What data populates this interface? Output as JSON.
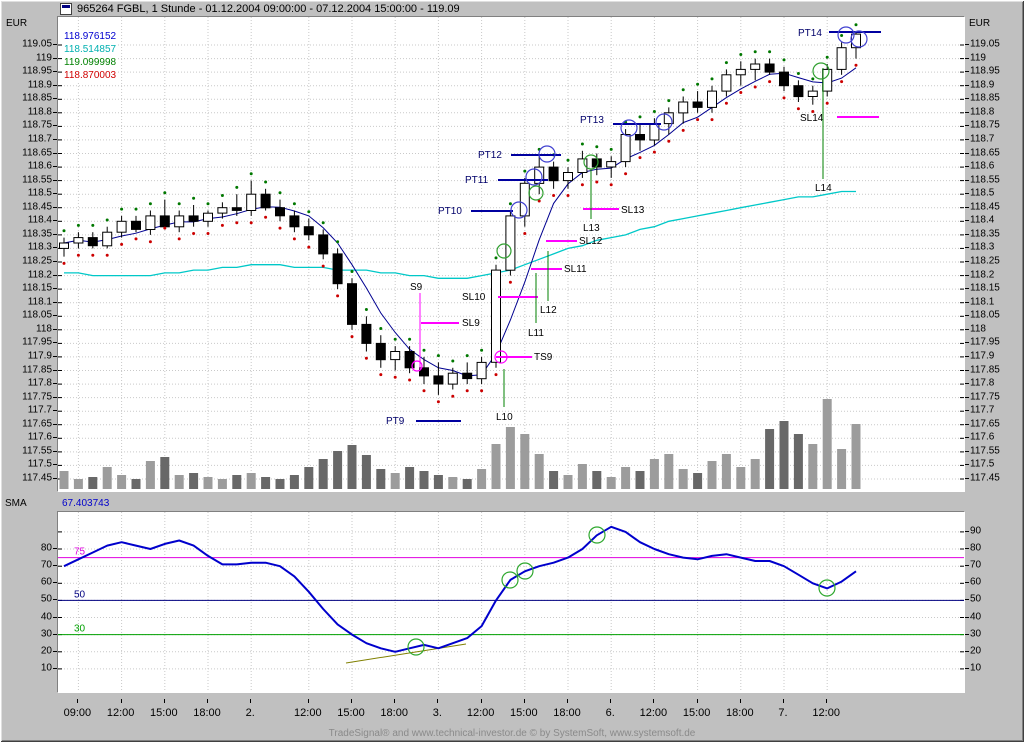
{
  "window": {
    "title": "965264  FGBL, 1 Stunde - 01.12.2004 09:00:00 - 07.12.2004 15:00:00 - 119.09",
    "footer": "TradeSignal® and www.technical-investor.de © by  SystemSoft, www.systemsoft.de"
  },
  "price_panel": {
    "axis_title_left": "EUR",
    "axis_title_right": "EUR",
    "legend": [
      {
        "value": "118.976152",
        "color": "#0000d0"
      },
      {
        "value": "118.514857",
        "color": "#00b0b0"
      },
      {
        "value": "119.099998",
        "color": "#008000"
      },
      {
        "value": "118.870003",
        "color": "#d00000"
      }
    ],
    "y_ticks": [
      119.05,
      119,
      118.95,
      118.9,
      118.85,
      118.8,
      118.75,
      118.7,
      118.65,
      118.6,
      118.55,
      118.5,
      118.45,
      118.4,
      118.35,
      118.3,
      118.25,
      118.2,
      118.15,
      118.1,
      118.05,
      118,
      117.95,
      117.9,
      117.85,
      117.8,
      117.75,
      117.7,
      117.65,
      117.6,
      117.55,
      117.5,
      117.45
    ]
  },
  "sma_panel": {
    "axis_title": "SMA",
    "legend_value": "67.403743",
    "left_ticks": [
      80,
      70,
      60,
      50,
      40,
      30,
      20,
      10
    ],
    "right_ticks": [
      90,
      80,
      70,
      60,
      50,
      40,
      30,
      20,
      10
    ],
    "levels": [
      {
        "label": "75",
        "value": 75,
        "color": "#e000e0"
      },
      {
        "label": "50",
        "value": 50,
        "color": "#000080"
      },
      {
        "label": "30",
        "value": 30,
        "color": "#00a000"
      }
    ]
  },
  "time_axis": {
    "ticks": [
      {
        "i": 1,
        "label": "09:00"
      },
      {
        "i": 4,
        "label": "12:00"
      },
      {
        "i": 7,
        "label": "15:00"
      },
      {
        "i": 10,
        "label": "18:00"
      },
      {
        "i": 13,
        "label": "2."
      },
      {
        "i": 17,
        "label": "12:00"
      },
      {
        "i": 20,
        "label": "15:00"
      },
      {
        "i": 23,
        "label": "18:00"
      },
      {
        "i": 26,
        "label": "3."
      },
      {
        "i": 29,
        "label": "12:00"
      },
      {
        "i": 32,
        "label": "15:00"
      },
      {
        "i": 35,
        "label": "18:00"
      },
      {
        "i": 38,
        "label": "6."
      },
      {
        "i": 41,
        "label": "12:00"
      },
      {
        "i": 44,
        "label": "15:00"
      },
      {
        "i": 47,
        "label": "18:00"
      },
      {
        "i": 50,
        "label": "7."
      },
      {
        "i": 53,
        "label": "12:00"
      }
    ]
  },
  "chart_data": {
    "type": "candlestick",
    "symbol": "FGBL",
    "timeframe": "1 Stunde",
    "period": "01.12.2004 09:00:00 - 07.12.2004 15:00:00",
    "last_price": 119.09,
    "price_axis_range": [
      117.45,
      119.05
    ],
    "candles_format": [
      "time",
      "open",
      "high",
      "low",
      "close",
      "volume"
    ],
    "candles": [
      [
        "01.12 08:00",
        118.3,
        118.34,
        118.27,
        118.32,
        18
      ],
      [
        "01.12 09:00",
        118.32,
        118.36,
        118.3,
        118.34,
        10
      ],
      [
        "01.12 10:00",
        118.34,
        118.36,
        118.3,
        118.31,
        12
      ],
      [
        "01.12 11:00",
        118.31,
        118.38,
        118.3,
        118.36,
        22
      ],
      [
        "01.12 12:00",
        118.36,
        118.42,
        118.34,
        118.4,
        14
      ],
      [
        "01.12 13:00",
        118.4,
        118.42,
        118.36,
        118.37,
        10
      ],
      [
        "01.12 14:00",
        118.37,
        118.44,
        118.35,
        118.42,
        28
      ],
      [
        "01.12 15:00",
        118.42,
        118.48,
        118.4,
        118.38,
        32
      ],
      [
        "01.12 16:00",
        118.38,
        118.44,
        118.36,
        118.42,
        14
      ],
      [
        "01.12 17:00",
        118.42,
        118.46,
        118.38,
        118.4,
        16
      ],
      [
        "01.12 18:00",
        118.4,
        118.44,
        118.38,
        118.43,
        12
      ],
      [
        "01.12 19:00",
        118.43,
        118.47,
        118.41,
        118.45,
        10
      ],
      [
        "01.12 20:00",
        118.45,
        118.5,
        118.42,
        118.44,
        14
      ],
      [
        "02.12 08:00",
        118.44,
        118.55,
        118.42,
        118.5,
        16
      ],
      [
        "02.12 09:00",
        118.5,
        118.52,
        118.44,
        118.45,
        12
      ],
      [
        "02.12 10:00",
        118.45,
        118.48,
        118.4,
        118.42,
        10
      ],
      [
        "02.12 11:00",
        118.42,
        118.44,
        118.36,
        118.38,
        14
      ],
      [
        "02.12 12:00",
        118.38,
        118.41,
        118.33,
        118.35,
        22
      ],
      [
        "02.12 13:00",
        118.35,
        118.37,
        118.26,
        118.28,
        30
      ],
      [
        "02.12 14:00",
        118.28,
        118.3,
        118.15,
        118.17,
        38
      ],
      [
        "02.12 15:00",
        118.17,
        118.19,
        118.0,
        118.02,
        44
      ],
      [
        "02.12 16:00",
        118.02,
        118.05,
        117.92,
        117.95,
        34
      ],
      [
        "02.12 17:00",
        117.95,
        117.98,
        117.86,
        117.89,
        20
      ],
      [
        "02.12 18:00",
        117.89,
        117.94,
        117.85,
        117.92,
        16
      ],
      [
        "02.12 19:00",
        117.92,
        117.94,
        117.84,
        117.86,
        22
      ],
      [
        "02.12 20:00",
        117.86,
        117.9,
        117.8,
        117.83,
        18
      ],
      [
        "03.12 09:00",
        117.83,
        117.88,
        117.76,
        117.8,
        14
      ],
      [
        "03.12 10:00",
        117.8,
        117.86,
        117.78,
        117.84,
        12
      ],
      [
        "03.12 11:00",
        117.84,
        117.88,
        117.8,
        117.82,
        10
      ],
      [
        "03.12 12:00",
        117.82,
        117.9,
        117.8,
        117.88,
        20
      ],
      [
        "03.12 13:00",
        117.88,
        118.24,
        117.86,
        118.22,
        45
      ],
      [
        "03.12 14:00",
        118.22,
        118.44,
        118.2,
        118.42,
        62
      ],
      [
        "03.12 15:00",
        118.42,
        118.56,
        118.38,
        118.54,
        55
      ],
      [
        "03.12 16:00",
        118.54,
        118.64,
        118.5,
        118.6,
        35
      ],
      [
        "03.12 17:00",
        118.6,
        118.62,
        118.52,
        118.55,
        18
      ],
      [
        "03.12 18:00",
        118.55,
        118.6,
        118.52,
        118.58,
        14
      ],
      [
        "03.12 19:00",
        118.58,
        118.66,
        118.56,
        118.63,
        25
      ],
      [
        "03.12 20:00",
        118.63,
        118.65,
        118.57,
        118.6,
        18
      ],
      [
        "06.12 09:00",
        118.6,
        118.64,
        118.56,
        118.62,
        12
      ],
      [
        "06.12 10:00",
        118.62,
        118.74,
        118.6,
        118.72,
        22
      ],
      [
        "06.12 11:00",
        118.72,
        118.76,
        118.66,
        118.7,
        18
      ],
      [
        "06.12 12:00",
        118.7,
        118.78,
        118.68,
        118.76,
        30
      ],
      [
        "06.12 13:00",
        118.76,
        118.82,
        118.72,
        118.8,
        35
      ],
      [
        "06.12 14:00",
        118.8,
        118.86,
        118.76,
        118.84,
        20
      ],
      [
        "06.12 15:00",
        118.84,
        118.88,
        118.8,
        118.82,
        16
      ],
      [
        "06.12 16:00",
        118.82,
        118.9,
        118.8,
        118.88,
        28
      ],
      [
        "06.12 17:00",
        118.88,
        118.96,
        118.86,
        118.94,
        35
      ],
      [
        "06.12 18:00",
        118.94,
        118.99,
        118.9,
        118.96,
        22
      ],
      [
        "06.12 19:00",
        118.96,
        119.0,
        118.92,
        118.98,
        30
      ],
      [
        "06.12 20:00",
        118.98,
        119.0,
        118.94,
        118.95,
        60
      ],
      [
        "07.12 09:00",
        118.95,
        118.97,
        118.88,
        118.9,
        68
      ],
      [
        "07.12 10:00",
        118.9,
        118.92,
        118.84,
        118.86,
        55
      ],
      [
        "07.12 11:00",
        118.86,
        118.9,
        118.83,
        118.88,
        45
      ],
      [
        "07.12 12:00",
        118.88,
        118.98,
        118.86,
        118.96,
        90
      ],
      [
        "07.12 13:00",
        118.96,
        119.06,
        118.94,
        119.04,
        40
      ],
      [
        "07.12 14:00",
        119.04,
        119.1,
        119.0,
        119.09,
        65
      ]
    ],
    "overlays": {
      "sma_fast": {
        "current": "118.976152",
        "color": "#000090",
        "period": 5
      },
      "sma_slow": {
        "current": "118.514857",
        "color": "#00c8c8",
        "values": [
          118.21,
          118.21,
          118.2,
          118.2,
          118.2,
          118.2,
          118.2,
          118.21,
          118.21,
          118.22,
          118.22,
          118.23,
          118.23,
          118.24,
          118.24,
          118.24,
          118.23,
          118.23,
          118.23,
          118.22,
          118.22,
          118.22,
          118.21,
          118.21,
          118.2,
          118.2,
          118.19,
          118.19,
          118.19,
          118.2,
          118.21,
          118.22,
          118.24,
          118.26,
          118.28,
          118.3,
          118.31,
          118.33,
          118.34,
          118.35,
          118.37,
          118.38,
          118.4,
          118.41,
          118.42,
          118.43,
          118.44,
          118.45,
          118.46,
          118.47,
          118.48,
          118.49,
          118.49,
          118.5,
          118.51,
          118.51
        ]
      },
      "dots": {
        "upper_current": "119.099998",
        "lower_current": "118.870003",
        "upper_color": "#007800",
        "lower_color": "#cc0000",
        "offset": 0.025
      }
    },
    "oscillator": {
      "name": "SMA",
      "current": 67.403743,
      "color": "#0000cc",
      "values": [
        70,
        74,
        78,
        82,
        84,
        82,
        80,
        83,
        85,
        82,
        76,
        71,
        71,
        72,
        72,
        70,
        64,
        55,
        45,
        36,
        30,
        25,
        22,
        20,
        22,
        24,
        22,
        25,
        28,
        35,
        50,
        62,
        67,
        70,
        72,
        75,
        80,
        88,
        93,
        90,
        84,
        80,
        77,
        75,
        74,
        76,
        77,
        75,
        73,
        73,
        70,
        65,
        60,
        57,
        61,
        67
      ],
      "trendline": {
        "x1": 288,
        "y1": 151,
        "x2": 408,
        "y2": 132,
        "color": "#808000"
      },
      "circle_color": "#2ea82e",
      "circles": [
        {
          "x": 358,
          "y": 135
        },
        {
          "x": 452,
          "y": 68
        },
        {
          "x": 467,
          "y": 59
        },
        {
          "x": 539,
          "y": 23
        },
        {
          "x": 769,
          "y": 76
        }
      ]
    },
    "annotations": {
      "h_lines": [
        {
          "text": "PT9",
          "x1": 358,
          "x2": 403,
          "y": 404,
          "lx": 328,
          "ly": 404,
          "color": "#0000a0",
          "lcolor": "#00006a"
        },
        {
          "text": "PT10",
          "x1": 413,
          "x2": 455,
          "y": 194,
          "lx": 380,
          "ly": 194,
          "color": "#0000a0",
          "lcolor": "#00006a"
        },
        {
          "text": "PT11",
          "x1": 440,
          "x2": 490,
          "y": 163,
          "lx": 407,
          "ly": 163,
          "color": "#0000a0",
          "lcolor": "#00006a"
        },
        {
          "text": "PT12",
          "x1": 453,
          "x2": 503,
          "y": 138,
          "lx": 420,
          "ly": 138,
          "color": "#0000a0",
          "lcolor": "#00006a"
        },
        {
          "text": "PT13",
          "x1": 555,
          "x2": 603,
          "y": 107,
          "lx": 522,
          "ly": 103,
          "color": "#0000a0",
          "lcolor": "#00006a"
        },
        {
          "text": "PT14",
          "x1": 771,
          "x2": 823,
          "y": 15,
          "lx": 740,
          "ly": 16,
          "color": "#0000a0",
          "lcolor": "#00006a"
        },
        {
          "text": "SL9",
          "x1": 363,
          "x2": 401,
          "y": 306,
          "lx": 404,
          "ly": 306,
          "color": "#ff00ff",
          "lcolor": "#000000"
        },
        {
          "text": "SL10",
          "x1": 440,
          "x2": 480,
          "y": 280,
          "lx": 404,
          "ly": 280,
          "color": "#ff00ff",
          "lcolor": "#000000"
        },
        {
          "text": "SL11",
          "x1": 473,
          "x2": 504,
          "y": 252,
          "lx": 506,
          "ly": 252,
          "color": "#ff00ff",
          "lcolor": "#000000"
        },
        {
          "text": "SL12",
          "x1": 488,
          "x2": 519,
          "y": 224,
          "lx": 521,
          "ly": 224,
          "color": "#ff00ff",
          "lcolor": "#000000"
        },
        {
          "text": "SL13",
          "x1": 525,
          "x2": 561,
          "y": 192,
          "lx": 563,
          "ly": 193,
          "color": "#ff00ff",
          "lcolor": "#000000"
        },
        {
          "text": "SL14",
          "x1": 779,
          "x2": 821,
          "y": 100,
          "lx": 742,
          "ly": 101,
          "color": "#ff00ff",
          "lcolor": "#000000"
        },
        {
          "text": "TS9",
          "x1": 438,
          "x2": 474,
          "y": 340,
          "lx": 476,
          "ly": 340,
          "color": "#ff00ff",
          "lcolor": "#000000"
        }
      ],
      "v_lines": [
        {
          "text": "S9",
          "x": 362,
          "y1": 276,
          "y2": 352,
          "lx": 352,
          "ly": 270,
          "color": "#ff00ff",
          "lcolor": "#000000"
        },
        {
          "text": "L10",
          "x": 446,
          "y1": 352,
          "y2": 390,
          "lx": 438,
          "ly": 400,
          "color": "#008000",
          "lcolor": "#000000"
        },
        {
          "text": "L11",
          "x": 478,
          "y1": 256,
          "y2": 306,
          "lx": 470,
          "ly": 316,
          "color": "#008000",
          "lcolor": "#000000"
        },
        {
          "text": "L12",
          "x": 490,
          "y1": 234,
          "y2": 284,
          "lx": 482,
          "ly": 293,
          "color": "#008000",
          "lcolor": "#000000"
        },
        {
          "text": "L13",
          "x": 533,
          "y1": 152,
          "y2": 202,
          "lx": 525,
          "ly": 211,
          "color": "#008000",
          "lcolor": "#000000"
        },
        {
          "text": "L14",
          "x": 765,
          "y1": 51,
          "y2": 162,
          "lx": 757,
          "ly": 171,
          "color": "#008000",
          "lcolor": "#000000"
        }
      ],
      "circles": [
        {
          "x": 359,
          "y": 349,
          "r": 5,
          "color": "#ff00ff"
        },
        {
          "x": 443,
          "y": 340,
          "r": 6,
          "color": "#ff00ff"
        },
        {
          "x": 446,
          "y": 234,
          "r": 7,
          "color": "#30a030"
        },
        {
          "x": 478,
          "y": 176,
          "r": 7,
          "color": "#30a030"
        },
        {
          "x": 533,
          "y": 145,
          "r": 7,
          "color": "#30a030"
        },
        {
          "x": 763,
          "y": 54,
          "r": 8,
          "color": "#30a030"
        },
        {
          "x": 461,
          "y": 193,
          "r": 8,
          "color": "#4040d0"
        },
        {
          "x": 476,
          "y": 160,
          "r": 8,
          "color": "#4040d0"
        },
        {
          "x": 489,
          "y": 137,
          "r": 8,
          "color": "#4040d0"
        },
        {
          "x": 571,
          "y": 111,
          "r": 8,
          "color": "#4040d0"
        },
        {
          "x": 606,
          "y": 105,
          "r": 8,
          "color": "#4040d0"
        },
        {
          "x": 788,
          "y": 18,
          "r": 8,
          "color": "#4040d0"
        },
        {
          "x": 801,
          "y": 22,
          "r": 8,
          "color": "#4040d0"
        }
      ]
    }
  }
}
